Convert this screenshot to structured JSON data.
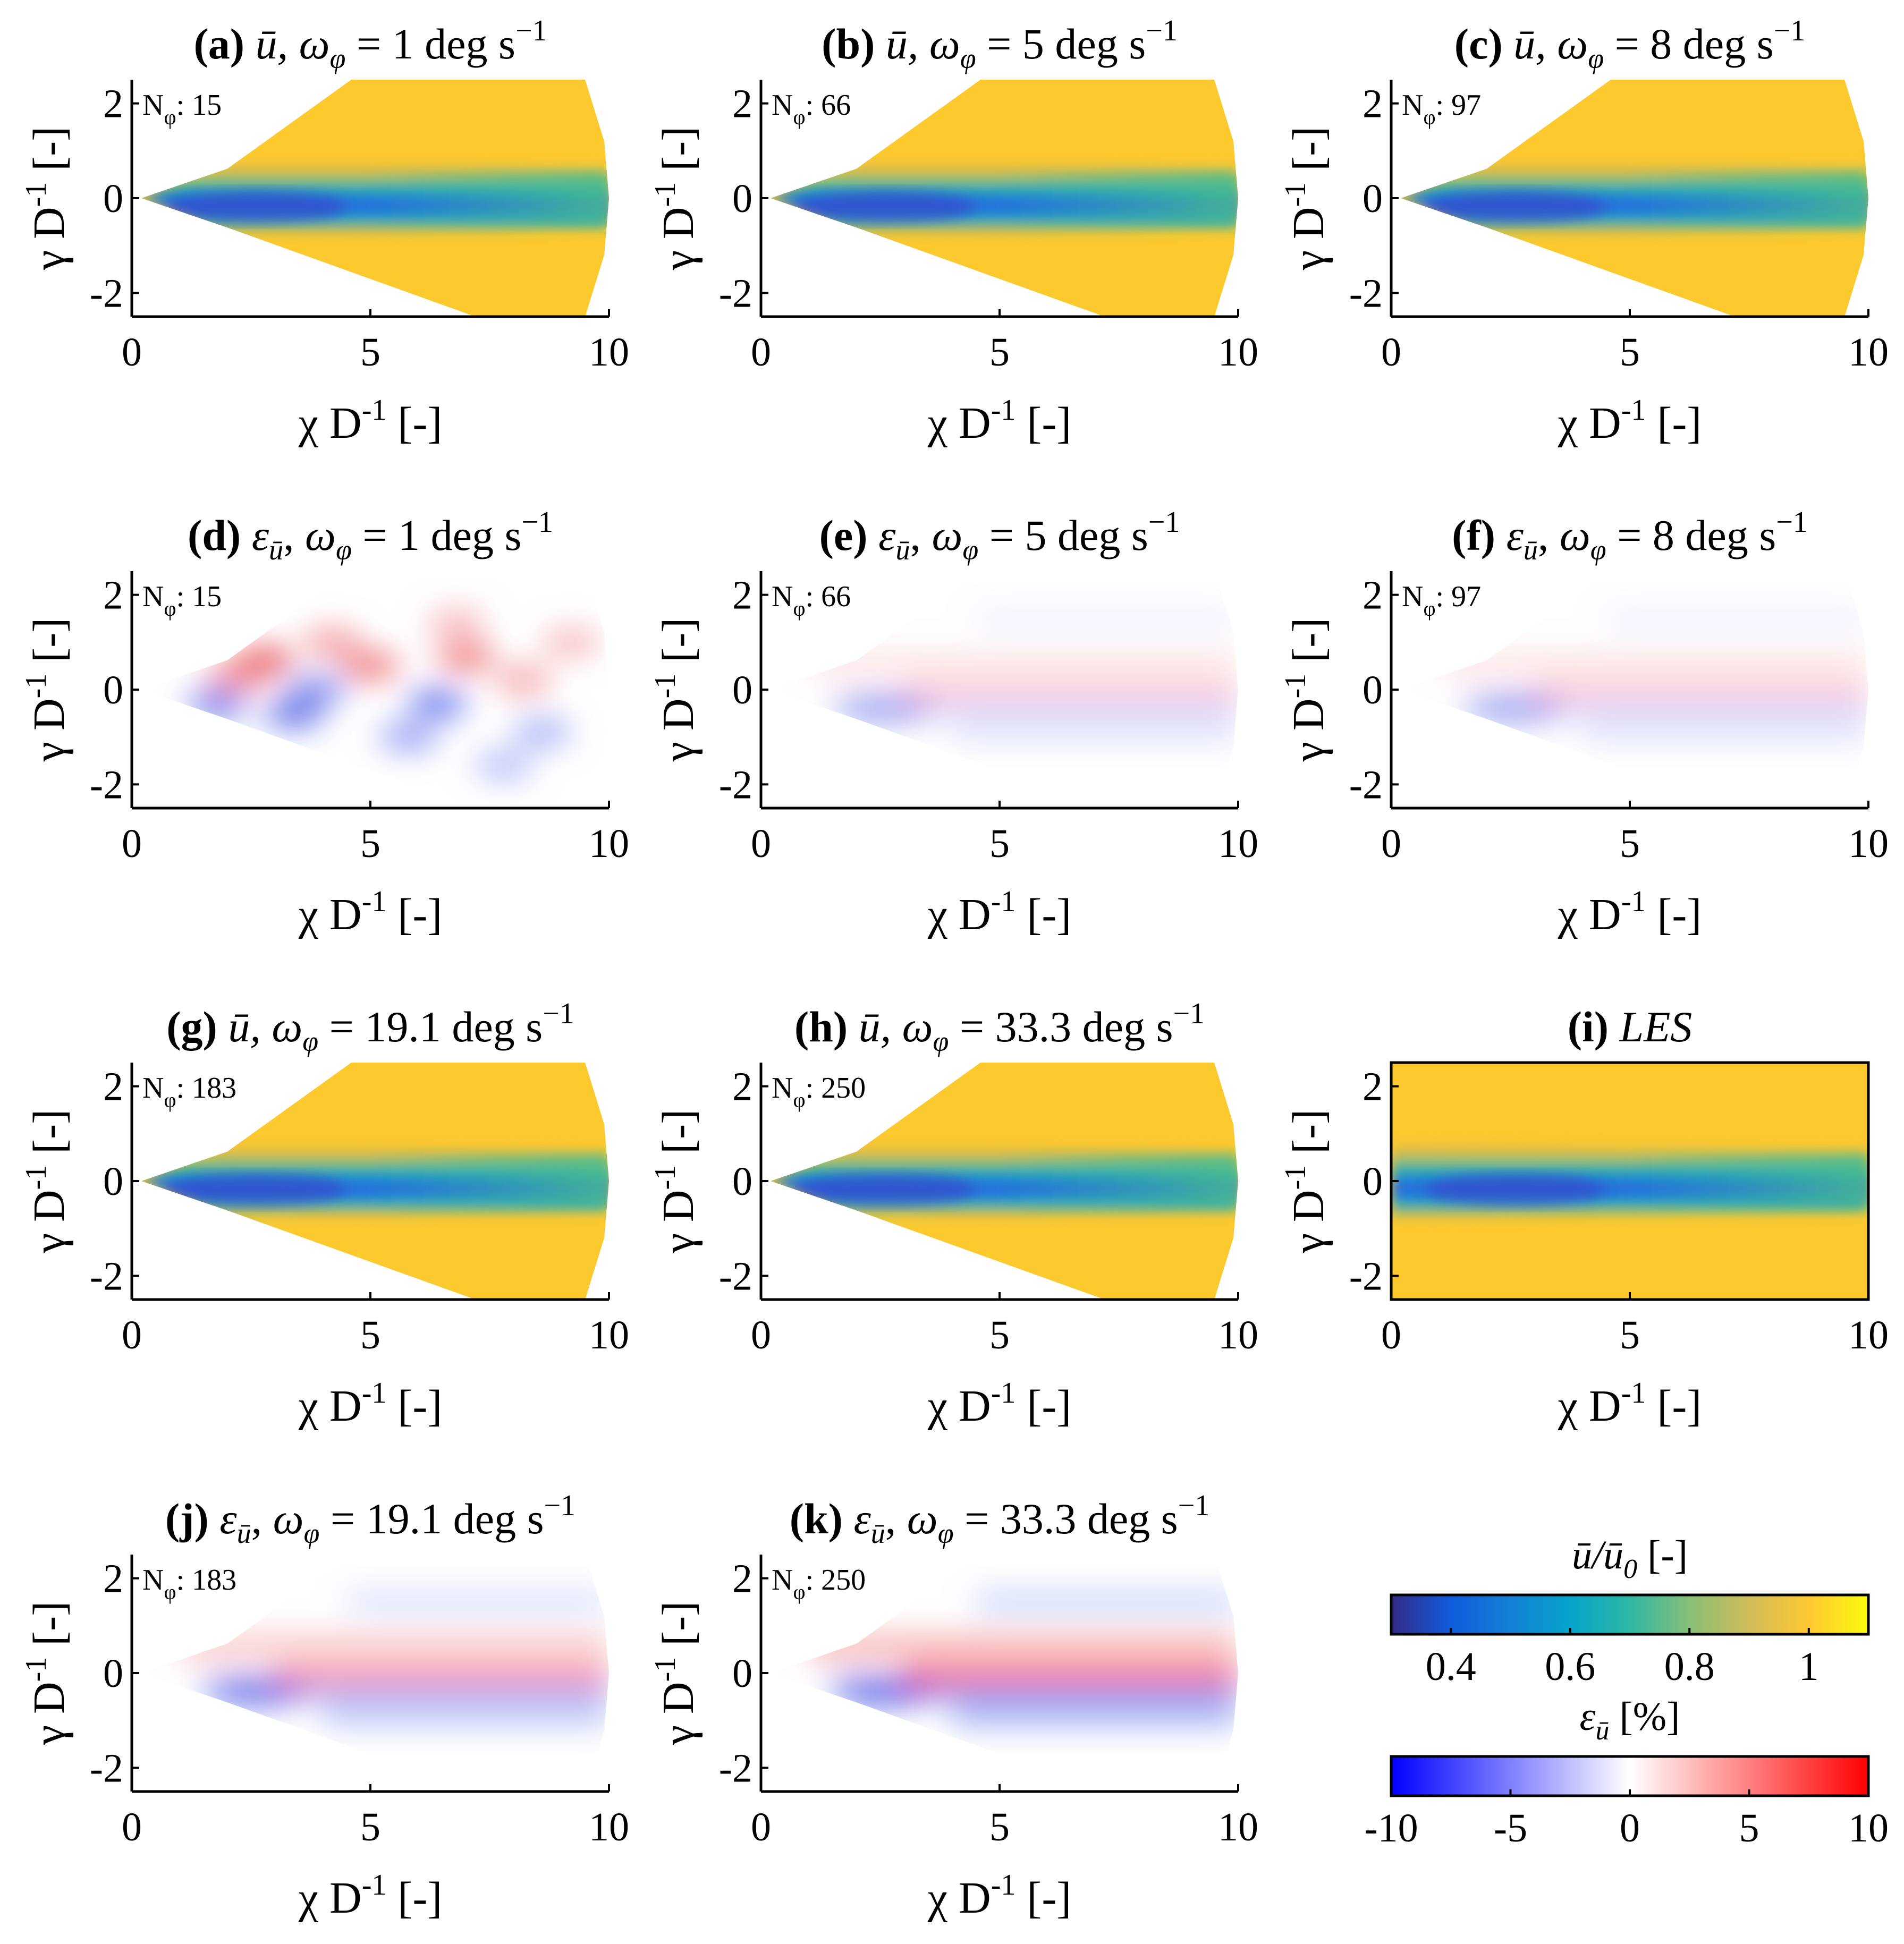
{
  "chart_data": {
    "type": "heatmap",
    "layout": "4x3 grid of wake contour panels plus two colorbars",
    "x_label_symbol": "χ D",
    "y_label_symbol": "γ D",
    "unit_label": "[-]",
    "exponent": "-1",
    "xlim": [
      0,
      10
    ],
    "ylim": [
      -2.5,
      2.5
    ],
    "x_ticks": [
      "0",
      "5",
      "10"
    ],
    "y_ticks": [
      "2",
      "0",
      "-2"
    ],
    "n_prefix": "N",
    "n_sub": "φ",
    "panels": [
      {
        "id": "a",
        "label": "(a)",
        "quantity": "ū,",
        "omega": "ω",
        "omega_sub": "φ",
        "rate": "= 1 deg s",
        "rate_exp": "−1",
        "n_value": ": 15",
        "kind": "velocity",
        "N": 15
      },
      {
        "id": "b",
        "label": "(b)",
        "quantity": "ū,",
        "omega": "ω",
        "omega_sub": "φ",
        "rate": "= 5 deg s",
        "rate_exp": "−1",
        "n_value": ": 66",
        "kind": "velocity",
        "N": 66
      },
      {
        "id": "c",
        "label": "(c)",
        "quantity": "ū,",
        "omega": "ω",
        "omega_sub": "φ",
        "rate": "= 8 deg s",
        "rate_exp": "−1",
        "n_value": ": 97",
        "kind": "velocity",
        "N": 97
      },
      {
        "id": "d",
        "label": "(d)",
        "quantity": "ε",
        "quantity_sub": "ū",
        "comma": ",",
        "omega": "ω",
        "omega_sub": "φ",
        "rate": "= 1 deg s",
        "rate_exp": "−1",
        "n_value": ": 15",
        "kind": "error",
        "N": 15
      },
      {
        "id": "e",
        "label": "(e)",
        "quantity": "ε",
        "quantity_sub": "ū",
        "comma": ",",
        "omega": "ω",
        "omega_sub": "φ",
        "rate": "= 5 deg s",
        "rate_exp": "−1",
        "n_value": ": 66",
        "kind": "error",
        "N": 66
      },
      {
        "id": "f",
        "label": "(f)",
        "quantity": "ε",
        "quantity_sub": "ū",
        "comma": ",",
        "omega": "ω",
        "omega_sub": "φ",
        "rate": "= 8 deg s",
        "rate_exp": "−1",
        "n_value": ": 97",
        "kind": "error",
        "N": 97
      },
      {
        "id": "g",
        "label": "(g)",
        "quantity": "ū,",
        "omega": "ω",
        "omega_sub": "φ",
        "rate": "= 19.1 deg s",
        "rate_exp": "−1",
        "n_value": ": 183",
        "kind": "velocity",
        "N": 183
      },
      {
        "id": "h",
        "label": "(h)",
        "quantity": "ū,",
        "omega": "ω",
        "omega_sub": "φ",
        "rate": "= 33.3 deg s",
        "rate_exp": "−1",
        "n_value": ": 250",
        "kind": "velocity",
        "N": 250
      },
      {
        "id": "i",
        "label": "(i)",
        "quantity": "LES",
        "kind": "les"
      },
      {
        "id": "j",
        "label": "(j)",
        "quantity": "ε",
        "quantity_sub": "ū",
        "comma": ",",
        "omega": "ω",
        "omega_sub": "φ",
        "rate": "= 19.1 deg s",
        "rate_exp": "−1",
        "n_value": ": 183",
        "kind": "error",
        "N": 183
      },
      {
        "id": "k",
        "label": "(k)",
        "quantity": "ε",
        "quantity_sub": "ū",
        "comma": ",",
        "omega": "ω",
        "omega_sub": "φ",
        "rate": "= 33.3 deg s",
        "rate_exp": "−1",
        "n_value": ": 250",
        "kind": "error",
        "N": 250
      }
    ],
    "colorbars": [
      {
        "id": "velocity",
        "label": "ū/ū",
        "label_sub": "0",
        "label_unit": "[-]",
        "range": [
          0.3,
          1.1
        ],
        "ticks": [
          "0.4",
          "0.6",
          "0.8",
          "1"
        ],
        "tick_values": [
          0.4,
          0.6,
          0.8,
          1.0
        ],
        "colormap": "parula",
        "stops": [
          "#352a87",
          "#0f5cdd",
          "#1481d6",
          "#06a4ca",
          "#2eb7a4",
          "#87bf77",
          "#d1bb59",
          "#fec832",
          "#f9fb0e"
        ]
      },
      {
        "id": "error",
        "label": "ε",
        "label_sub": "ū",
        "label_unit": "[%]",
        "range": [
          -10,
          10
        ],
        "ticks": [
          "-10",
          "-5",
          "0",
          "5",
          "10"
        ],
        "tick_values": [
          -10,
          -5,
          0,
          5,
          10
        ],
        "colormap": "blue-white-red",
        "stops": [
          "#0000ff",
          "#ffffff",
          "#ff0000"
        ]
      }
    ]
  }
}
